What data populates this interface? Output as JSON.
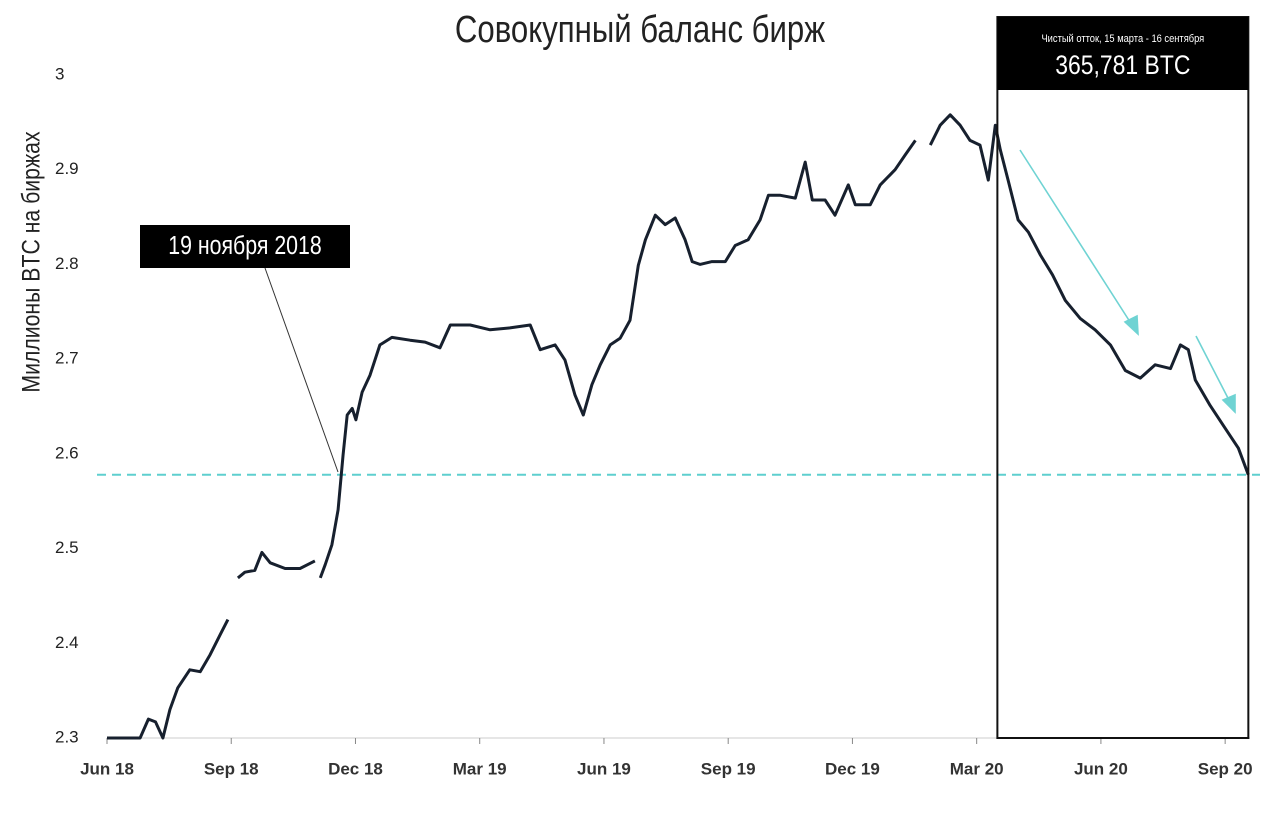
{
  "chart_data": {
    "type": "line",
    "title": "Совокупный баланс бирж",
    "y_label": "Миллионы BTC на биржах",
    "x": [
      0,
      0.8,
      1.0,
      1.17,
      1.35,
      1.52,
      1.71,
      2.0,
      2.25,
      2.49,
      2.73,
      2.92,
      3.0,
      3.16,
      3.33,
      3.57,
      3.74,
      3.94,
      4.3,
      4.66,
      5.02,
      5.1,
      5.15,
      5.27,
      5.43,
      5.58,
      5.7,
      5.8,
      5.92,
      6.01,
      6.16,
      6.35,
      6.59,
      6.88,
      7.32,
      7.68,
      8.04,
      8.29,
      8.77,
      9.25,
      9.73,
      10.22,
      10.46,
      10.82,
      11.06,
      11.3,
      11.5,
      11.71,
      11.91,
      12.15,
      12.39,
      12.63,
      12.83,
      13.0,
      13.24,
      13.48,
      13.72,
      13.96,
      14.13,
      14.32,
      14.61,
      14.93,
      15.17,
      15.48,
      15.77,
      15.97,
      16.26,
      16.62,
      16.86,
      17.03,
      17.34,
      17.58,
      17.9,
      18.07,
      18.43,
      18.67,
      19.03,
      19.28,
      19.52,
      19.6,
      19.88,
      20.12,
      20.36,
      20.6,
      20.84,
      21.08,
      21.28,
      21.45,
      21.57,
      21.76,
      22.0,
      22.25,
      22.54,
      22.83,
      23.14,
      23.5,
      23.86,
      24.23,
      24.59,
      24.95,
      25.31,
      25.68,
      25.92,
      26.11,
      26.28,
      26.64,
      27.0,
      27.32,
      27.56
    ],
    "series": [
      {
        "name": "Совокупный баланс",
        "color": "#17202e",
        "values": [
          2.3,
          2.3,
          2.32,
          2.317,
          2.3,
          2.33,
          2.353,
          2.372,
          2.37,
          2.388,
          2.409,
          2.425,
          null,
          2.469,
          2.475,
          2.477,
          2.496,
          2.485,
          2.479,
          2.479,
          2.487,
          null,
          2.469,
          2.483,
          2.504,
          2.541,
          2.599,
          2.641,
          2.648,
          2.636,
          2.665,
          2.683,
          2.715,
          2.723,
          2.72,
          2.718,
          2.712,
          2.736,
          2.736,
          2.731,
          2.733,
          2.736,
          2.71,
          2.715,
          2.699,
          2.662,
          2.641,
          2.673,
          2.694,
          2.715,
          2.722,
          2.741,
          2.799,
          2.826,
          2.852,
          2.842,
          2.849,
          2.826,
          2.803,
          2.8,
          2.803,
          2.803,
          2.82,
          2.826,
          2.847,
          2.873,
          2.873,
          2.87,
          2.908,
          2.868,
          2.868,
          2.852,
          2.884,
          2.863,
          2.863,
          2.884,
          2.9,
          2.916,
          2.931,
          null,
          2.926,
          2.947,
          2.958,
          2.947,
          2.931,
          2.926,
          2.889,
          2.947,
          2.921,
          2.889,
          2.847,
          2.834,
          2.81,
          2.789,
          2.762,
          2.743,
          2.731,
          2.715,
          2.688,
          2.68,
          2.694,
          2.69,
          2.715,
          2.71,
          2.678,
          2.651,
          2.627,
          2.606,
          2.578
        ]
      }
    ],
    "xlim": [
      0,
      27.6
    ],
    "xticks": [
      {
        "value": 0,
        "label": "Jun 18"
      },
      {
        "value": 3,
        "label": "Sep 18"
      },
      {
        "value": 6,
        "label": "Dec 18"
      },
      {
        "value": 9,
        "label": "Mar 19"
      },
      {
        "value": 12,
        "label": "Jun 19"
      },
      {
        "value": 15,
        "label": "Sep 19"
      },
      {
        "value": 18,
        "label": "Dec 19"
      },
      {
        "value": 21,
        "label": "Mar 20"
      },
      {
        "value": 24,
        "label": "Jun 20"
      },
      {
        "value": 27,
        "label": "Sep 20"
      }
    ],
    "ylim": [
      2.3,
      3
    ],
    "yticks": [
      2.3,
      2.4,
      2.5,
      2.6,
      2.7,
      2.8,
      2.9,
      3
    ],
    "reference_line": {
      "value": 2.578,
      "color": "#5ecfcf"
    },
    "annotation": "19 ноября 2018",
    "highlight": {
      "x": [
        21.5,
        27.56
      ],
      "caption": "Чистый отток, 15 марта - 16 сентября",
      "value_text": "365,781 BTC"
    },
    "grid": false
  }
}
